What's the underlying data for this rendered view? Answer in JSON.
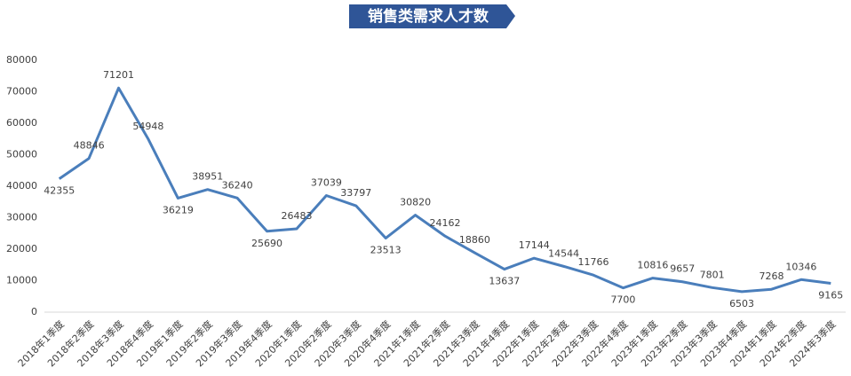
{
  "chart_data": {
    "type": "line",
    "title": "销售类需求人才数",
    "categories": [
      "2018年1季度",
      "2018年2季度",
      "2018年3季度",
      "2018年4季度",
      "2019年1季度",
      "2019年2季度",
      "2019年3季度",
      "2019年4季度",
      "2020年1季度",
      "2020年2季度",
      "2020年3季度",
      "2020年4季度",
      "2021年1季度",
      "2021年2季度",
      "2021年3季度",
      "2021年4季度",
      "2022年1季度",
      "2022年2季度",
      "2022年3季度",
      "2022年4季度",
      "2023年1季度",
      "2023年2季度",
      "2023年3季度",
      "2023年4季度",
      "2024年1季度",
      "2024年2季度",
      "2024年3季度"
    ],
    "values": [
      42355,
      48846,
      71201,
      54948,
      36219,
      38951,
      36240,
      25690,
      26483,
      37039,
      33797,
      23513,
      30820,
      24162,
      18860,
      13637,
      17144,
      14544,
      11766,
      7700,
      10816,
      9657,
      7801,
      6503,
      7268,
      10346,
      9165
    ],
    "color": "#4a7ebb",
    "ylim": [
      0,
      80000
    ],
    "yticks": [
      0,
      10000,
      20000,
      30000,
      40000,
      50000,
      60000,
      70000,
      80000
    ],
    "grid": false
  }
}
